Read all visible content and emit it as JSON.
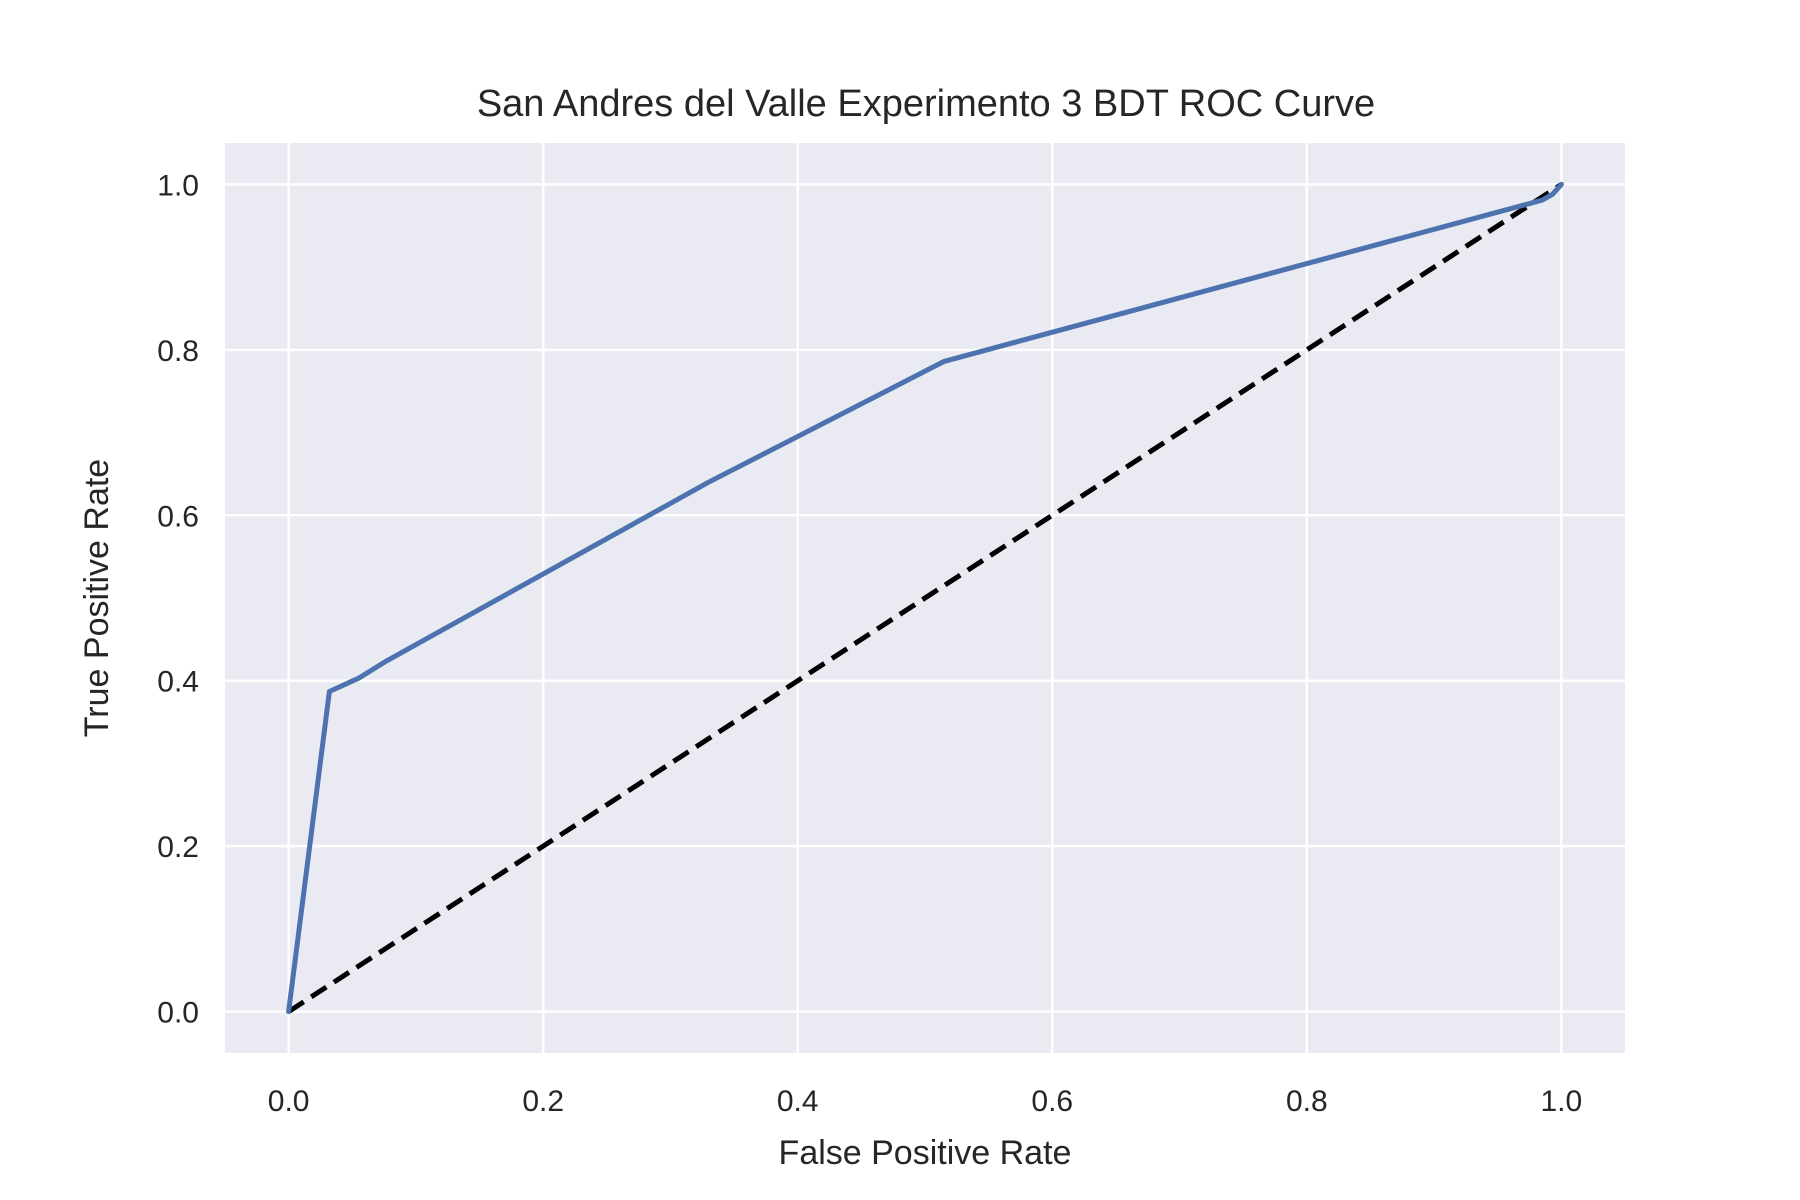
{
  "chart_data": {
    "type": "line",
    "title": "San Andres del Valle Experimento 3 BDT ROC Curve",
    "xlabel": "False Positive Rate",
    "ylabel": "True Positive Rate",
    "xlim": [
      -0.05,
      1.05
    ],
    "ylim": [
      -0.05,
      1.05
    ],
    "xticks": [
      "0.0",
      "0.2",
      "0.4",
      "0.6",
      "0.8",
      "1.0"
    ],
    "yticks": [
      "0.0",
      "0.2",
      "0.4",
      "0.6",
      "0.8",
      "1.0"
    ],
    "grid": true,
    "background": "#eaeaf2",
    "series": [
      {
        "style": "solid",
        "color": "#4c72b0",
        "x": [
          0.0,
          0.032,
          0.055,
          0.077,
          0.33,
          0.515,
          0.985,
          0.993,
          1.0
        ],
        "y": [
          0.0,
          0.387,
          0.403,
          0.424,
          0.64,
          0.786,
          0.981,
          0.988,
          1.0
        ]
      },
      {
        "style": "dashed",
        "color": "#000000",
        "x": [
          0.0,
          1.0
        ],
        "y": [
          0.0,
          1.0
        ]
      }
    ]
  }
}
